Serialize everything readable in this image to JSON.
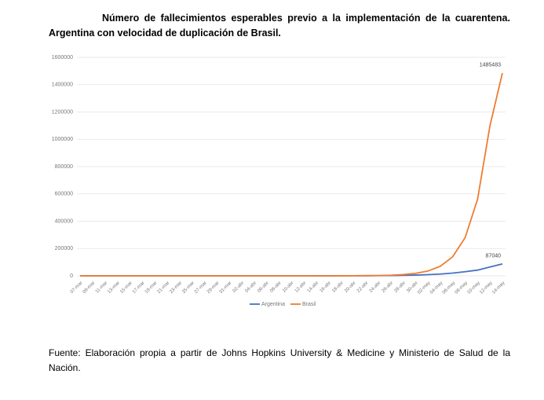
{
  "chart_data": {
    "type": "line",
    "title": "Número de fallecimientos esperables previo a la implementación de la cuarentena. Argentina con velocidad de duplicación de Brasil.",
    "source": "Fuente: Elaboración propia a partir de Johns Hopkins University & Medicine y Ministerio de Salud de la Nación.",
    "categories": [
      "07-mar",
      "09-mar",
      "11-mar",
      "13-mar",
      "15-mar",
      "17-mar",
      "19-mar",
      "21-mar",
      "23-mar",
      "25-mar",
      "27-mar",
      "29-mar",
      "31-mar",
      "02-abr",
      "04-abr",
      "06-abr",
      "08-abr",
      "10-abr",
      "12-abr",
      "14-abr",
      "16-abr",
      "18-abr",
      "20-abr",
      "22-abr",
      "24-abr",
      "26-abr",
      "28-abr",
      "30-abr",
      "02-may",
      "04-may",
      "06-may",
      "08-may",
      "10-may",
      "12-may",
      "14-may"
    ],
    "series": [
      {
        "name": "Argentina",
        "color": "#4472c4",
        "values": [
          1,
          1,
          1,
          1,
          1,
          1,
          1,
          1,
          2,
          3,
          4,
          6,
          10,
          15,
          22,
          35,
          50,
          80,
          120,
          180,
          280,
          420,
          650,
          1000,
          1500,
          2300,
          3500,
          5500,
          8500,
          13000,
          20000,
          30000,
          42000,
          65000,
          87040
        ]
      },
      {
        "name": "Brasil",
        "color": "#ed7d31",
        "values": [
          1,
          1,
          1,
          1,
          1,
          1,
          1,
          1,
          1,
          1,
          1,
          1,
          1,
          2,
          3,
          5,
          9,
          18,
          35,
          70,
          140,
          280,
          550,
          1100,
          2200,
          4500,
          9000,
          18000,
          35000,
          70000,
          140000,
          280000,
          560000,
          1100000,
          1485483
        ]
      }
    ],
    "ylim": [
      0,
      1600000
    ],
    "yticks": [
      0,
      200000,
      400000,
      600000,
      800000,
      1000000,
      1200000,
      1400000,
      1600000
    ],
    "grid": true,
    "legend": "bottom"
  }
}
